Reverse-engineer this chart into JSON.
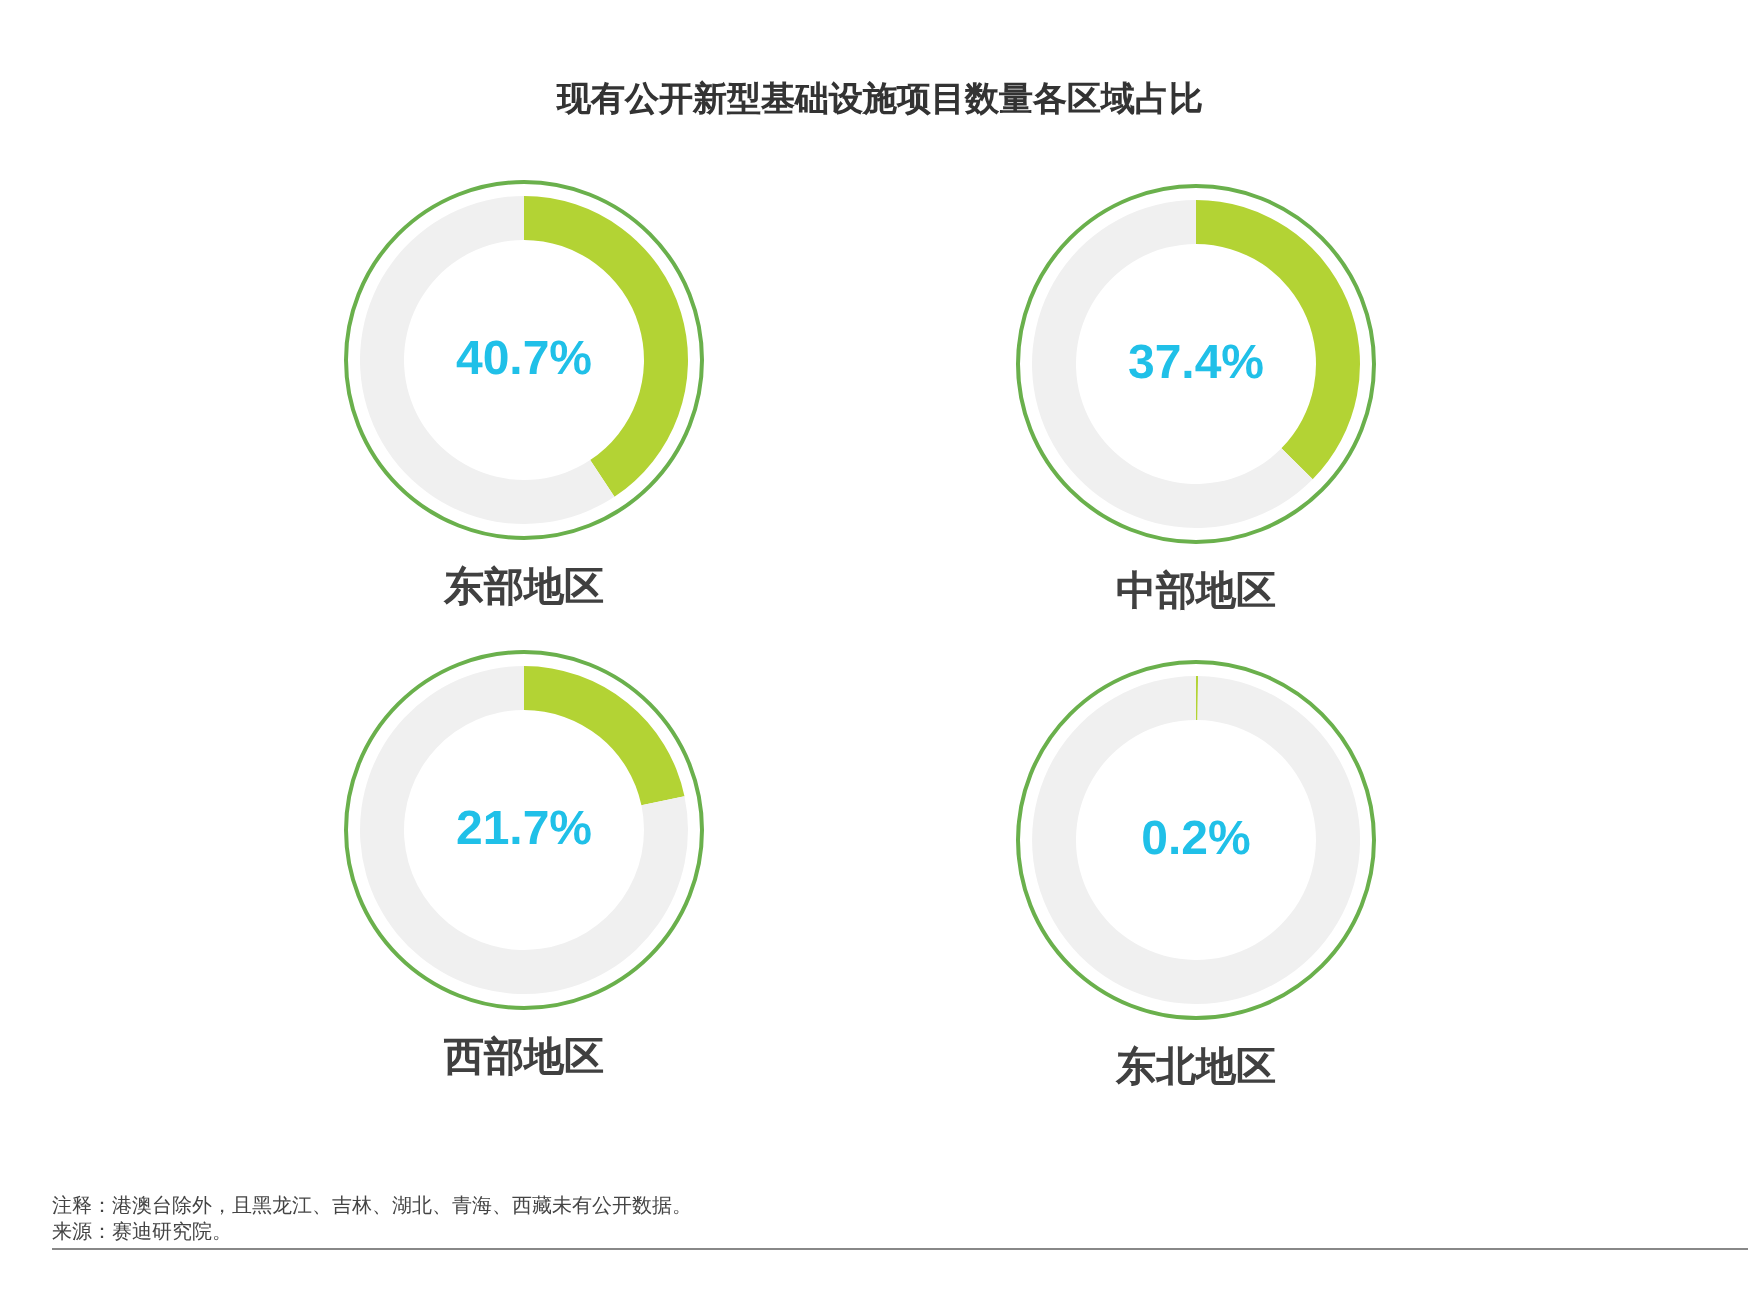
{
  "chart_data": [
    {
      "type": "donut",
      "title": "现有公开新型基础设施项目数量各区域占比",
      "xlabel": "东部地区",
      "categories": [
        null,
        null
      ],
      "values": [
        40.7,
        59.3
      ],
      "value_labels": [
        "40.7%",
        null
      ],
      "colors": [
        "#b3d334",
        "#f0f0f0"
      ]
    },
    {
      "type": "donut",
      "xlabel": "中部地区",
      "categories": [
        null,
        null
      ],
      "values": [
        37.4,
        62.6
      ],
      "value_labels": [
        "37.4%",
        null
      ],
      "colors": [
        "#b3d334",
        "#f0f0f0"
      ]
    },
    {
      "type": "donut",
      "xlabel": "西部地区",
      "categories": [
        null,
        null
      ],
      "values": [
        21.7,
        78.3
      ],
      "value_labels": [
        "21.7%",
        null
      ],
      "colors": [
        "#b3d334",
        "#f0f0f0"
      ]
    },
    {
      "type": "donut",
      "xlabel": "东北地区",
      "categories": [
        null,
        null
      ],
      "values": [
        0.2,
        99.8
      ],
      "value_labels": [
        "0.2%",
        null
      ],
      "colors": [
        "#b3d334",
        "#f0f0f0"
      ],
      "annotations": [
        "注释：港澳台除外，且黑龙江、吉林、湖北、青海、西藏未有公开数据。",
        "来源：赛迪研究院。"
      ]
    }
  ]
}
